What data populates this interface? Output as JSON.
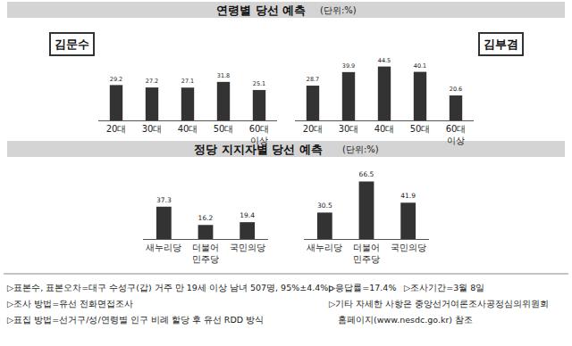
{
  "sections": [
    {
      "title": "연령별 당선 예측",
      "unit": "(단위:%)"
    },
    {
      "title": "정당 지지자별 당선 예측",
      "unit": "(단위:%)"
    }
  ],
  "chart_data": [
    {
      "type": "bar",
      "title": "김문수",
      "categories": [
        "20대",
        "30대",
        "40대",
        "50대",
        "60대 이상"
      ],
      "values": [
        29.2,
        27.2,
        27.1,
        31.8,
        25.1
      ],
      "color": "#333333",
      "ylim": [
        0,
        70
      ],
      "data_labels": true,
      "tick_labels": "x",
      "grid": false
    },
    {
      "type": "bar",
      "title": "김부겸",
      "categories": [
        "20대",
        "30대",
        "40대",
        "50대",
        "60대 이상"
      ],
      "values": [
        28.7,
        39.9,
        44.5,
        40.1,
        20.6
      ],
      "color": "#333333",
      "ylim": [
        0,
        70
      ],
      "data_labels": true,
      "tick_labels": "x",
      "grid": false
    },
    {
      "type": "bar",
      "categories": [
        "새누리당",
        "더불어 민주당",
        "국민의당"
      ],
      "values": [
        37.3,
        16.2,
        19.4
      ],
      "color": "#333333",
      "ylim": [
        0,
        70
      ],
      "data_labels": true,
      "tick_labels": "x",
      "grid": false
    },
    {
      "type": "bar",
      "categories": [
        "새누리당",
        "더불어 민주당",
        "국민의당"
      ],
      "values": [
        30.5,
        66.5,
        41.9
      ],
      "color": "#333333",
      "ylim": [
        0,
        70
      ],
      "data_labels": true,
      "tick_labels": "x",
      "grid": false
    }
  ],
  "notes": {
    "left": [
      "▷표본수, 표본오차=대구 수성구(갑) 거주 만 19세 이상 남녀 507명, 95%±4.4%p",
      "▷조사 방법=유선 전화면접조사",
      "▷표집 방법=선거구/성/연령별 인구 비례 할당 후 유선 RDD 방식"
    ],
    "right": [
      [
        "▷응답률=17.4%",
        "▷조사기간=3월 8일"
      ],
      [
        "▷기타 자세한 사항은 중앙선거여론조사공정심의위원회"
      ],
      [
        "홈페이지(www.nesdc.go.kr) 참조"
      ]
    ]
  }
}
